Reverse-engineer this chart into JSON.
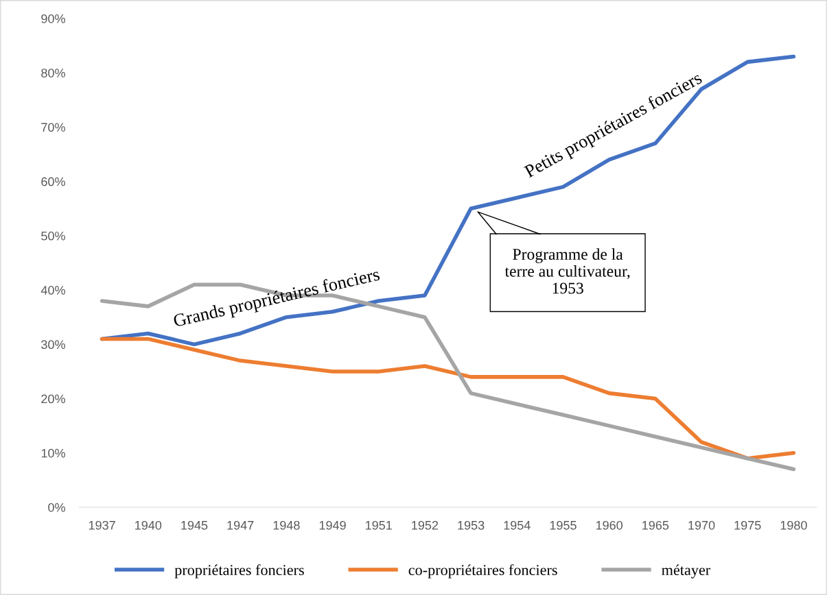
{
  "chart_data": {
    "type": "line",
    "categories": [
      "1937",
      "1940",
      "1945",
      "1947",
      "1948",
      "1949",
      "1951",
      "1952",
      "1953",
      "1954",
      "1955",
      "1960",
      "1965",
      "1970",
      "1975",
      "1980"
    ],
    "series": [
      {
        "name": "propriétaires fonciers",
        "color": "#4472c4",
        "values": [
          31,
          32,
          30,
          32,
          35,
          36,
          38,
          39,
          55,
          57,
          59,
          64,
          67,
          77,
          82,
          83
        ]
      },
      {
        "name": "co-propriétaires fonciers",
        "color": "#ed7d31",
        "values": [
          31,
          31,
          29,
          27,
          26,
          25,
          25,
          26,
          24,
          24,
          24,
          21,
          20,
          12,
          9,
          10
        ]
      },
      {
        "name": "métayer",
        "color": "#a5a5a5",
        "values": [
          38,
          37,
          41,
          41,
          39,
          39,
          37,
          35,
          21,
          19,
          17,
          15,
          13,
          11,
          9,
          7
        ]
      }
    ],
    "ylim": [
      0,
      90
    ],
    "yticks": [
      {
        "value": 0,
        "label": "0%"
      },
      {
        "value": 10,
        "label": "10%"
      },
      {
        "value": 20,
        "label": "20%"
      },
      {
        "value": 30,
        "label": "30%"
      },
      {
        "value": 40,
        "label": "40%"
      },
      {
        "value": 50,
        "label": "50%"
      },
      {
        "value": 60,
        "label": "60%"
      },
      {
        "value": 70,
        "label": "70%"
      },
      {
        "value": 80,
        "label": "80%"
      },
      {
        "value": 90,
        "label": "90%"
      }
    ],
    "annotations": [
      "Grands propriétaires fonciers",
      "Petits propriétaires fonciers",
      "Programme de la\nterre au cultivateur,\n1953"
    ],
    "legend": "bottom",
    "grid": false,
    "marker": "none",
    "line_style": "solid"
  }
}
